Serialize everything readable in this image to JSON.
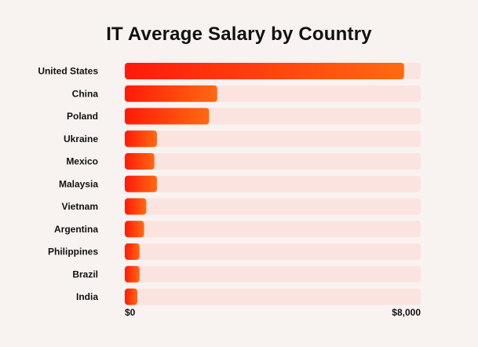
{
  "chart_data": {
    "type": "bar",
    "orientation": "horizontal",
    "title": "IT Average Salary by Country",
    "categories": [
      "United States",
      "China",
      "Poland",
      "Ukraine",
      "Mexico",
      "Malaysia",
      "Vietnam",
      "Argentina",
      "Philippines",
      "Brazil",
      "India"
    ],
    "values": [
      7550,
      2500,
      2280,
      870,
      800,
      870,
      580,
      520,
      400,
      400,
      340
    ],
    "xlim": [
      0,
      8000
    ],
    "xticks": [
      "$0",
      "$8,000"
    ],
    "grid": false,
    "colors": {
      "bar_start": "#ff1a0a",
      "bar_end": "#ff6a10",
      "track": "#fbe3df",
      "background": "#f8f3f0"
    }
  }
}
